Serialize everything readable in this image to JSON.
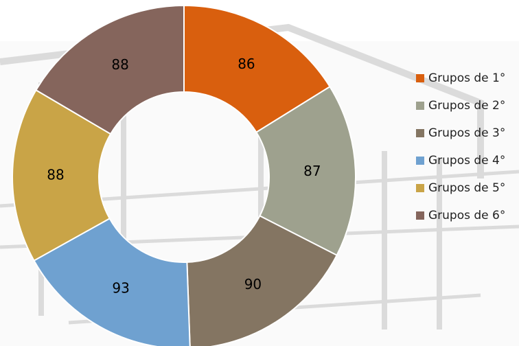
{
  "chart_data": {
    "type": "donut",
    "categories": [
      "Grupos de 1°",
      "Grupos de 2°",
      "Grupos de 3°",
      "Grupos de 4°",
      "Grupos de 5°",
      "Grupos de 6°"
    ],
    "values": [
      86,
      87,
      90,
      93,
      88,
      88
    ],
    "colors": [
      "#d95f0e",
      "#9ea18e",
      "#847562",
      "#6fa1d0",
      "#c9a447",
      "#85655c"
    ],
    "legend": "right"
  }
}
